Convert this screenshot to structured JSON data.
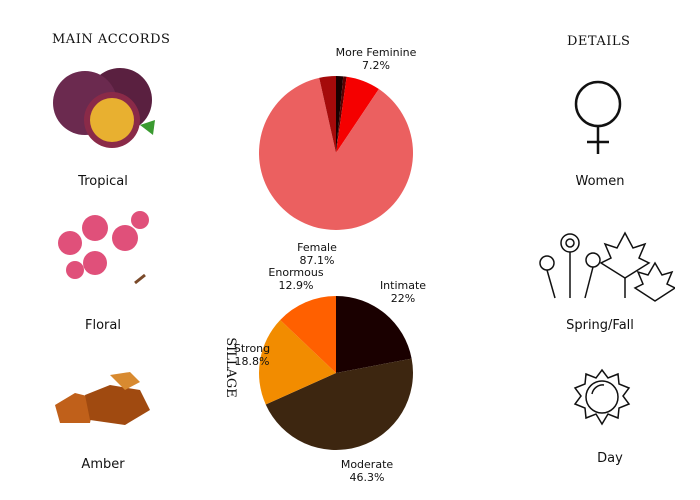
{
  "accords": {
    "title": "MAIN ACCORDS",
    "items": [
      {
        "label": "Tropical",
        "icon": "passion-fruit-image"
      },
      {
        "label": "Floral",
        "icon": "orchid-image"
      },
      {
        "label": "Amber",
        "icon": "amber-image"
      }
    ]
  },
  "details": {
    "title": "DETAILS",
    "items": [
      {
        "label": "Women",
        "icon": "female-symbol-icon"
      },
      {
        "label": "Spring/Fall",
        "icon": "flowers-leaves-icon"
      },
      {
        "label": "Day",
        "icon": "sun-icon"
      }
    ]
  },
  "chart_data": [
    {
      "type": "pie",
      "slices": [
        {
          "name": "",
          "value": 1.5,
          "color": "#1a0000"
        },
        {
          "name": "",
          "value": 0.7,
          "color": "#5a0000"
        },
        {
          "name": "More Feminine",
          "value": 7.2,
          "label": "7.2%",
          "color": "#f50000"
        },
        {
          "name": "Female",
          "value": 87.1,
          "label": "87.1%",
          "color": "#eb6060"
        },
        {
          "name": "",
          "value": 3.5,
          "color": "#a50a0a"
        }
      ]
    },
    {
      "type": "pie",
      "title": "SILLAGE",
      "slices": [
        {
          "name": "Intimate",
          "value": 22,
          "label": "22%",
          "color": "#1a0000"
        },
        {
          "name": "Moderate",
          "value": 46.3,
          "label": "46.3%",
          "color": "#3d2610"
        },
        {
          "name": "Strong",
          "value": 18.8,
          "label": "18.8%",
          "color": "#f28c00"
        },
        {
          "name": "Enormous",
          "value": 12.9,
          "label": "12.9%",
          "color": "#ff6000"
        }
      ]
    }
  ]
}
